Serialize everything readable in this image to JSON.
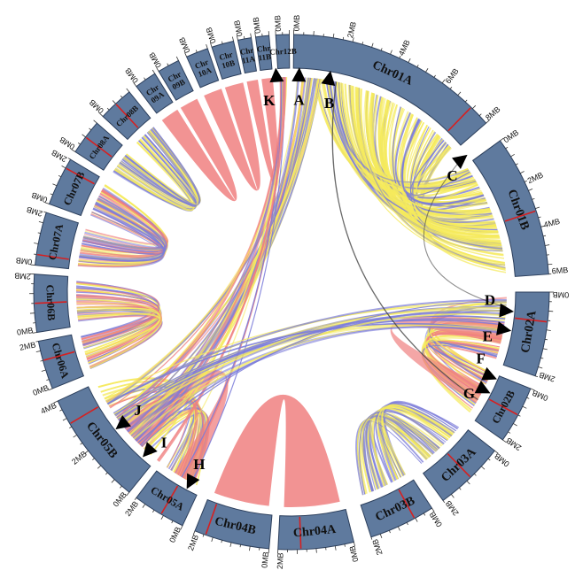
{
  "colors": {
    "segment_fill": "#5f7a9e",
    "segment_stroke": "#2c3f5c",
    "red_mark": "#d62020",
    "link_yellow": "#f5ea5c",
    "link_blue": "#7b7cd9",
    "link_red": "#f08080",
    "link_dark": "#444444"
  },
  "chromosomes": [
    {
      "id": "chr01a",
      "label": "Chr01A",
      "ticks": [
        "0MB",
        "2MB",
        "4MB",
        "6MB",
        "8MB"
      ]
    },
    {
      "id": "chr01b",
      "label": "Chr01B",
      "ticks": [
        "0MB",
        "2MB",
        "4MB",
        "6MB"
      ]
    },
    {
      "id": "chr02a",
      "label": "Chr02A",
      "ticks": [
        "0MB",
        "2MB"
      ]
    },
    {
      "id": "chr02b",
      "label": "Chr02B",
      "ticks": [
        "0MB",
        "2MB"
      ]
    },
    {
      "id": "chr03a",
      "label": "Chr03A",
      "ticks": [
        "0MB",
        "2MB"
      ]
    },
    {
      "id": "chr03b",
      "label": "Chr03B",
      "ticks": [
        "0MB",
        "2MB"
      ]
    },
    {
      "id": "chr04a",
      "label": "Chr04A",
      "ticks": [
        "0MB",
        "2MB"
      ]
    },
    {
      "id": "chr04b",
      "label": "Chr04B",
      "ticks": [
        "0MB",
        "2MB"
      ]
    },
    {
      "id": "chr05a",
      "label": "Chr05A",
      "ticks": [
        "0MB",
        "2MB"
      ]
    },
    {
      "id": "chr05b",
      "label": "Chr05B",
      "ticks": [
        "0MB",
        "2MB",
        "4MB"
      ]
    },
    {
      "id": "chr06a",
      "label": "Chr06A",
      "ticks": [
        "0MB",
        "2MB"
      ]
    },
    {
      "id": "chr06b",
      "label": "Chr06B",
      "ticks": [
        "0MB",
        "2MB"
      ]
    },
    {
      "id": "chr07a",
      "label": "Chr07A",
      "ticks": [
        "0MB",
        "2MB"
      ]
    },
    {
      "id": "chr07b",
      "label": "Chr07B",
      "ticks": [
        "0MB",
        "2MB"
      ]
    },
    {
      "id": "chr08a",
      "label": "Chr08A",
      "ticks": [
        "0MB"
      ]
    },
    {
      "id": "chr08b",
      "label": "Chr08B",
      "ticks": [
        "0MB"
      ]
    },
    {
      "id": "chr09a",
      "label": "Chr 09A",
      "ticks": [
        "0MB"
      ]
    },
    {
      "id": "chr09b",
      "label": "Chr 09B",
      "ticks": [
        "0MB"
      ]
    },
    {
      "id": "chr10a",
      "label": "Chr 10A",
      "ticks": [
        "0MB"
      ]
    },
    {
      "id": "chr10b",
      "label": "Chr 10B",
      "ticks": [
        "0MB"
      ]
    },
    {
      "id": "chr11a",
      "label": "Chr 11A",
      "ticks": [
        "0MB"
      ]
    },
    {
      "id": "chr11b",
      "label": "Chr 11B",
      "ticks": [
        "0MB"
      ]
    },
    {
      "id": "chr12b",
      "label": "Chr12B",
      "ticks": [
        "0MB"
      ]
    }
  ],
  "markers": [
    "A",
    "B",
    "C",
    "D",
    "E",
    "F",
    "G",
    "H",
    "I",
    "J",
    "K"
  ]
}
